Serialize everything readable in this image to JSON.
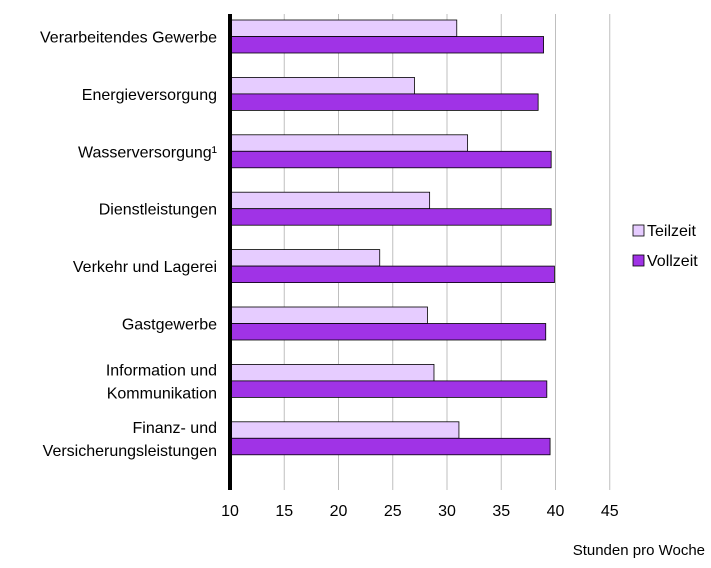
{
  "chart_data": {
    "type": "bar",
    "orientation": "horizontal",
    "categories": [
      [
        "Verarbeitendes Gewerbe"
      ],
      [
        "Energieversorgung"
      ],
      [
        "Wasserversorgung¹"
      ],
      [
        "Dienstleistungen"
      ],
      [
        "Verkehr und Lagerei"
      ],
      [
        "Gastgewerbe"
      ],
      [
        "Information und",
        "Kommunikation"
      ],
      [
        "Finanz- und",
        "Versicherungsleistungen"
      ]
    ],
    "series": [
      {
        "name": "Teilzeit",
        "color": "#e6ccff",
        "values": [
          30.9,
          27.0,
          31.9,
          28.4,
          23.8,
          28.2,
          28.8,
          31.1
        ]
      },
      {
        "name": "Vollzeit",
        "color": "#a033e6",
        "values": [
          38.9,
          38.4,
          39.6,
          39.6,
          39.9,
          39.1,
          39.2,
          39.5
        ]
      }
    ],
    "xlim": [
      10,
      45
    ],
    "xticks": [
      10,
      15,
      20,
      25,
      30,
      35,
      40,
      45
    ],
    "xlabel": "Stunden pro Woche",
    "grid": true,
    "legend_position": "right"
  }
}
